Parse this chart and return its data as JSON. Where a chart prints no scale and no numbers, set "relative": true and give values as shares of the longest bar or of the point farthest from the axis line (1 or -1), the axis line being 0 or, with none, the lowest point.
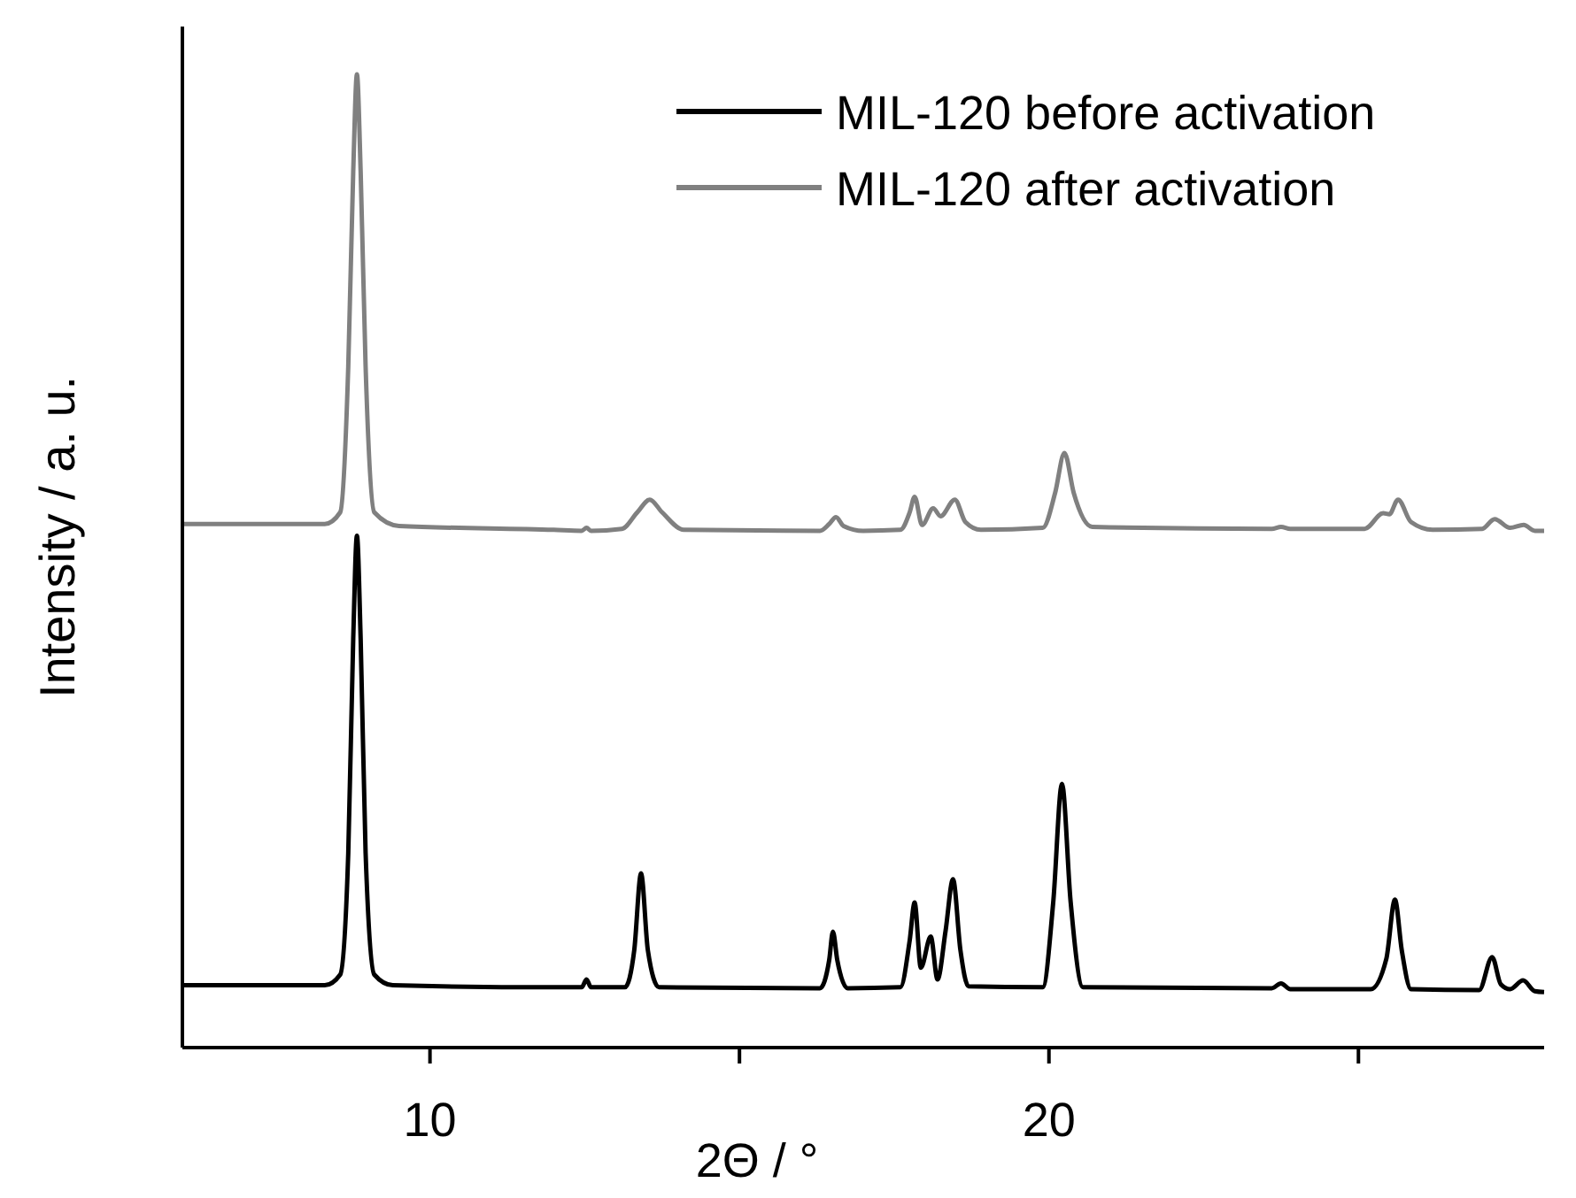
{
  "chart_data": {
    "type": "line",
    "relative": true,
    "xlabel": "2Θ / °",
    "ylabel": "Intensity / a. u.",
    "xlim": [
      6,
      28
    ],
    "xticks": [
      10,
      {
        "value": 15,
        "label": null
      },
      20,
      {
        "value": 25,
        "label": null
      }
    ],
    "legend": "top right",
    "marker": "none",
    "line_style": "solid",
    "series": [
      {
        "name": "MIL-120 before activation",
        "color": "#000000",
        "x": [
          6.0,
          8.3,
          8.55,
          8.68,
          8.76,
          8.82,
          8.88,
          8.96,
          9.1,
          9.4,
          12.0,
          12.45,
          12.53,
          12.6,
          13.15,
          13.3,
          13.41,
          13.52,
          13.7,
          16.3,
          16.45,
          16.51,
          16.58,
          16.75,
          17.6,
          17.75,
          17.83,
          17.93,
          18.09,
          18.2,
          18.33,
          18.45,
          18.57,
          18.7,
          19.9,
          20.07,
          20.21,
          20.35,
          20.55,
          23.6,
          23.75,
          23.9,
          25.2,
          25.45,
          25.59,
          25.7,
          25.85,
          26.95,
          27.16,
          27.3,
          27.45,
          27.66,
          27.85,
          28.0
        ],
        "values": [
          0.064,
          0.064,
          0.075,
          0.2,
          0.42,
          0.526,
          0.42,
          0.2,
          0.075,
          0.064,
          0.062,
          0.062,
          0.07,
          0.062,
          0.062,
          0.1,
          0.179,
          0.1,
          0.062,
          0.061,
          0.09,
          0.119,
          0.09,
          0.061,
          0.062,
          0.11,
          0.149,
          0.082,
          0.114,
          0.07,
          0.12,
          0.173,
          0.1,
          0.063,
          0.062,
          0.15,
          0.271,
          0.15,
          0.062,
          0.061,
          0.066,
          0.06,
          0.06,
          0.091,
          0.152,
          0.1,
          0.06,
          0.059,
          0.093,
          0.065,
          0.06,
          0.069,
          0.058,
          0.057
        ]
      },
      {
        "name": "MIL-120 after activation",
        "color": "#808080",
        "x": [
          6.0,
          8.3,
          8.55,
          8.68,
          8.76,
          8.82,
          8.88,
          8.96,
          9.1,
          9.5,
          12.0,
          12.45,
          12.53,
          12.6,
          13.1,
          13.35,
          13.55,
          13.75,
          14.1,
          16.3,
          16.45,
          16.56,
          16.68,
          17.0,
          17.6,
          17.75,
          17.83,
          17.95,
          18.13,
          18.25,
          18.48,
          18.65,
          18.9,
          19.9,
          20.1,
          20.25,
          20.4,
          20.7,
          23.6,
          23.75,
          23.9,
          25.1,
          25.4,
          25.5,
          25.64,
          25.85,
          26.2,
          27.0,
          27.2,
          27.45,
          27.67,
          27.85,
          28.0
        ],
        "values": [
          0.538,
          0.538,
          0.55,
          0.7,
          0.9,
          1.0,
          0.9,
          0.7,
          0.55,
          0.536,
          0.532,
          0.531,
          0.534,
          0.531,
          0.533,
          0.55,
          0.563,
          0.55,
          0.532,
          0.531,
          0.538,
          0.545,
          0.536,
          0.531,
          0.532,
          0.55,
          0.566,
          0.537,
          0.554,
          0.546,
          0.563,
          0.54,
          0.532,
          0.534,
          0.57,
          0.611,
          0.57,
          0.535,
          0.533,
          0.535,
          0.533,
          0.533,
          0.549,
          0.548,
          0.563,
          0.54,
          0.532,
          0.533,
          0.543,
          0.534,
          0.537,
          0.531,
          0.531
        ]
      }
    ]
  }
}
